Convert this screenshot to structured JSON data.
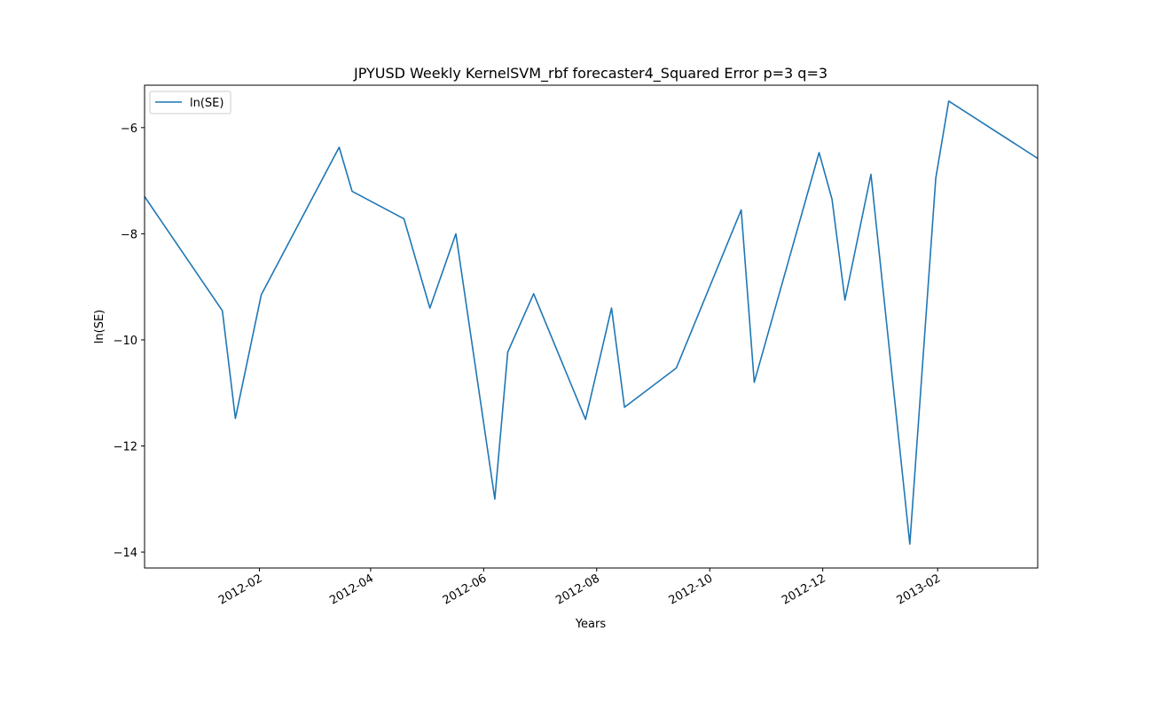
{
  "chart_data": {
    "type": "line",
    "title": "JPYUSD Weekly KernelSVM_rbf forecaster4_Squared Error p=3 q=3",
    "xlabel": "Years",
    "ylabel": "ln(SE)",
    "legend": {
      "placement": "upper-left",
      "entries": [
        "ln(SE)"
      ]
    },
    "grid": false,
    "xlim": [
      "2011-12-01",
      "2013-03-27"
    ],
    "ylim": [
      -14.3,
      -5.2
    ],
    "x_ticks": [
      "2012-02",
      "2012-04",
      "2012-06",
      "2012-08",
      "2012-10",
      "2012-12",
      "2013-02"
    ],
    "x_tick_dates": [
      "2012-02-01",
      "2012-04-01",
      "2012-06-01",
      "2012-08-01",
      "2012-10-01",
      "2012-12-01",
      "2013-02-01"
    ],
    "y_ticks": [
      -14,
      -12,
      -10,
      -8,
      -6
    ],
    "y_tick_labels": [
      "−14",
      "−12",
      "−10",
      "−8",
      "−6"
    ],
    "series": [
      {
        "name": "ln(SE)",
        "color": "#1f77b4",
        "x": [
          "2011-12-01",
          "2012-01-12",
          "2012-01-19",
          "2012-02-02",
          "2012-03-15",
          "2012-03-22",
          "2012-04-19",
          "2012-05-03",
          "2012-05-17",
          "2012-06-07",
          "2012-06-14",
          "2012-06-28",
          "2012-07-26",
          "2012-08-09",
          "2012-08-16",
          "2012-09-13",
          "2012-10-18",
          "2012-10-25",
          "2012-11-29",
          "2012-12-06",
          "2012-12-13",
          "2012-12-27",
          "2013-01-17",
          "2013-01-31",
          "2013-02-07",
          "2013-03-27"
        ],
        "values": [
          -7.3,
          -9.45,
          -11.48,
          -9.15,
          -6.37,
          -7.2,
          -7.72,
          -9.4,
          -8.0,
          -13.0,
          -10.23,
          -9.13,
          -11.5,
          -9.4,
          -11.27,
          -10.53,
          -7.55,
          -10.8,
          -6.47,
          -7.35,
          -9.25,
          -6.88,
          -13.85,
          -6.95,
          -5.5,
          -6.58
        ]
      }
    ]
  }
}
